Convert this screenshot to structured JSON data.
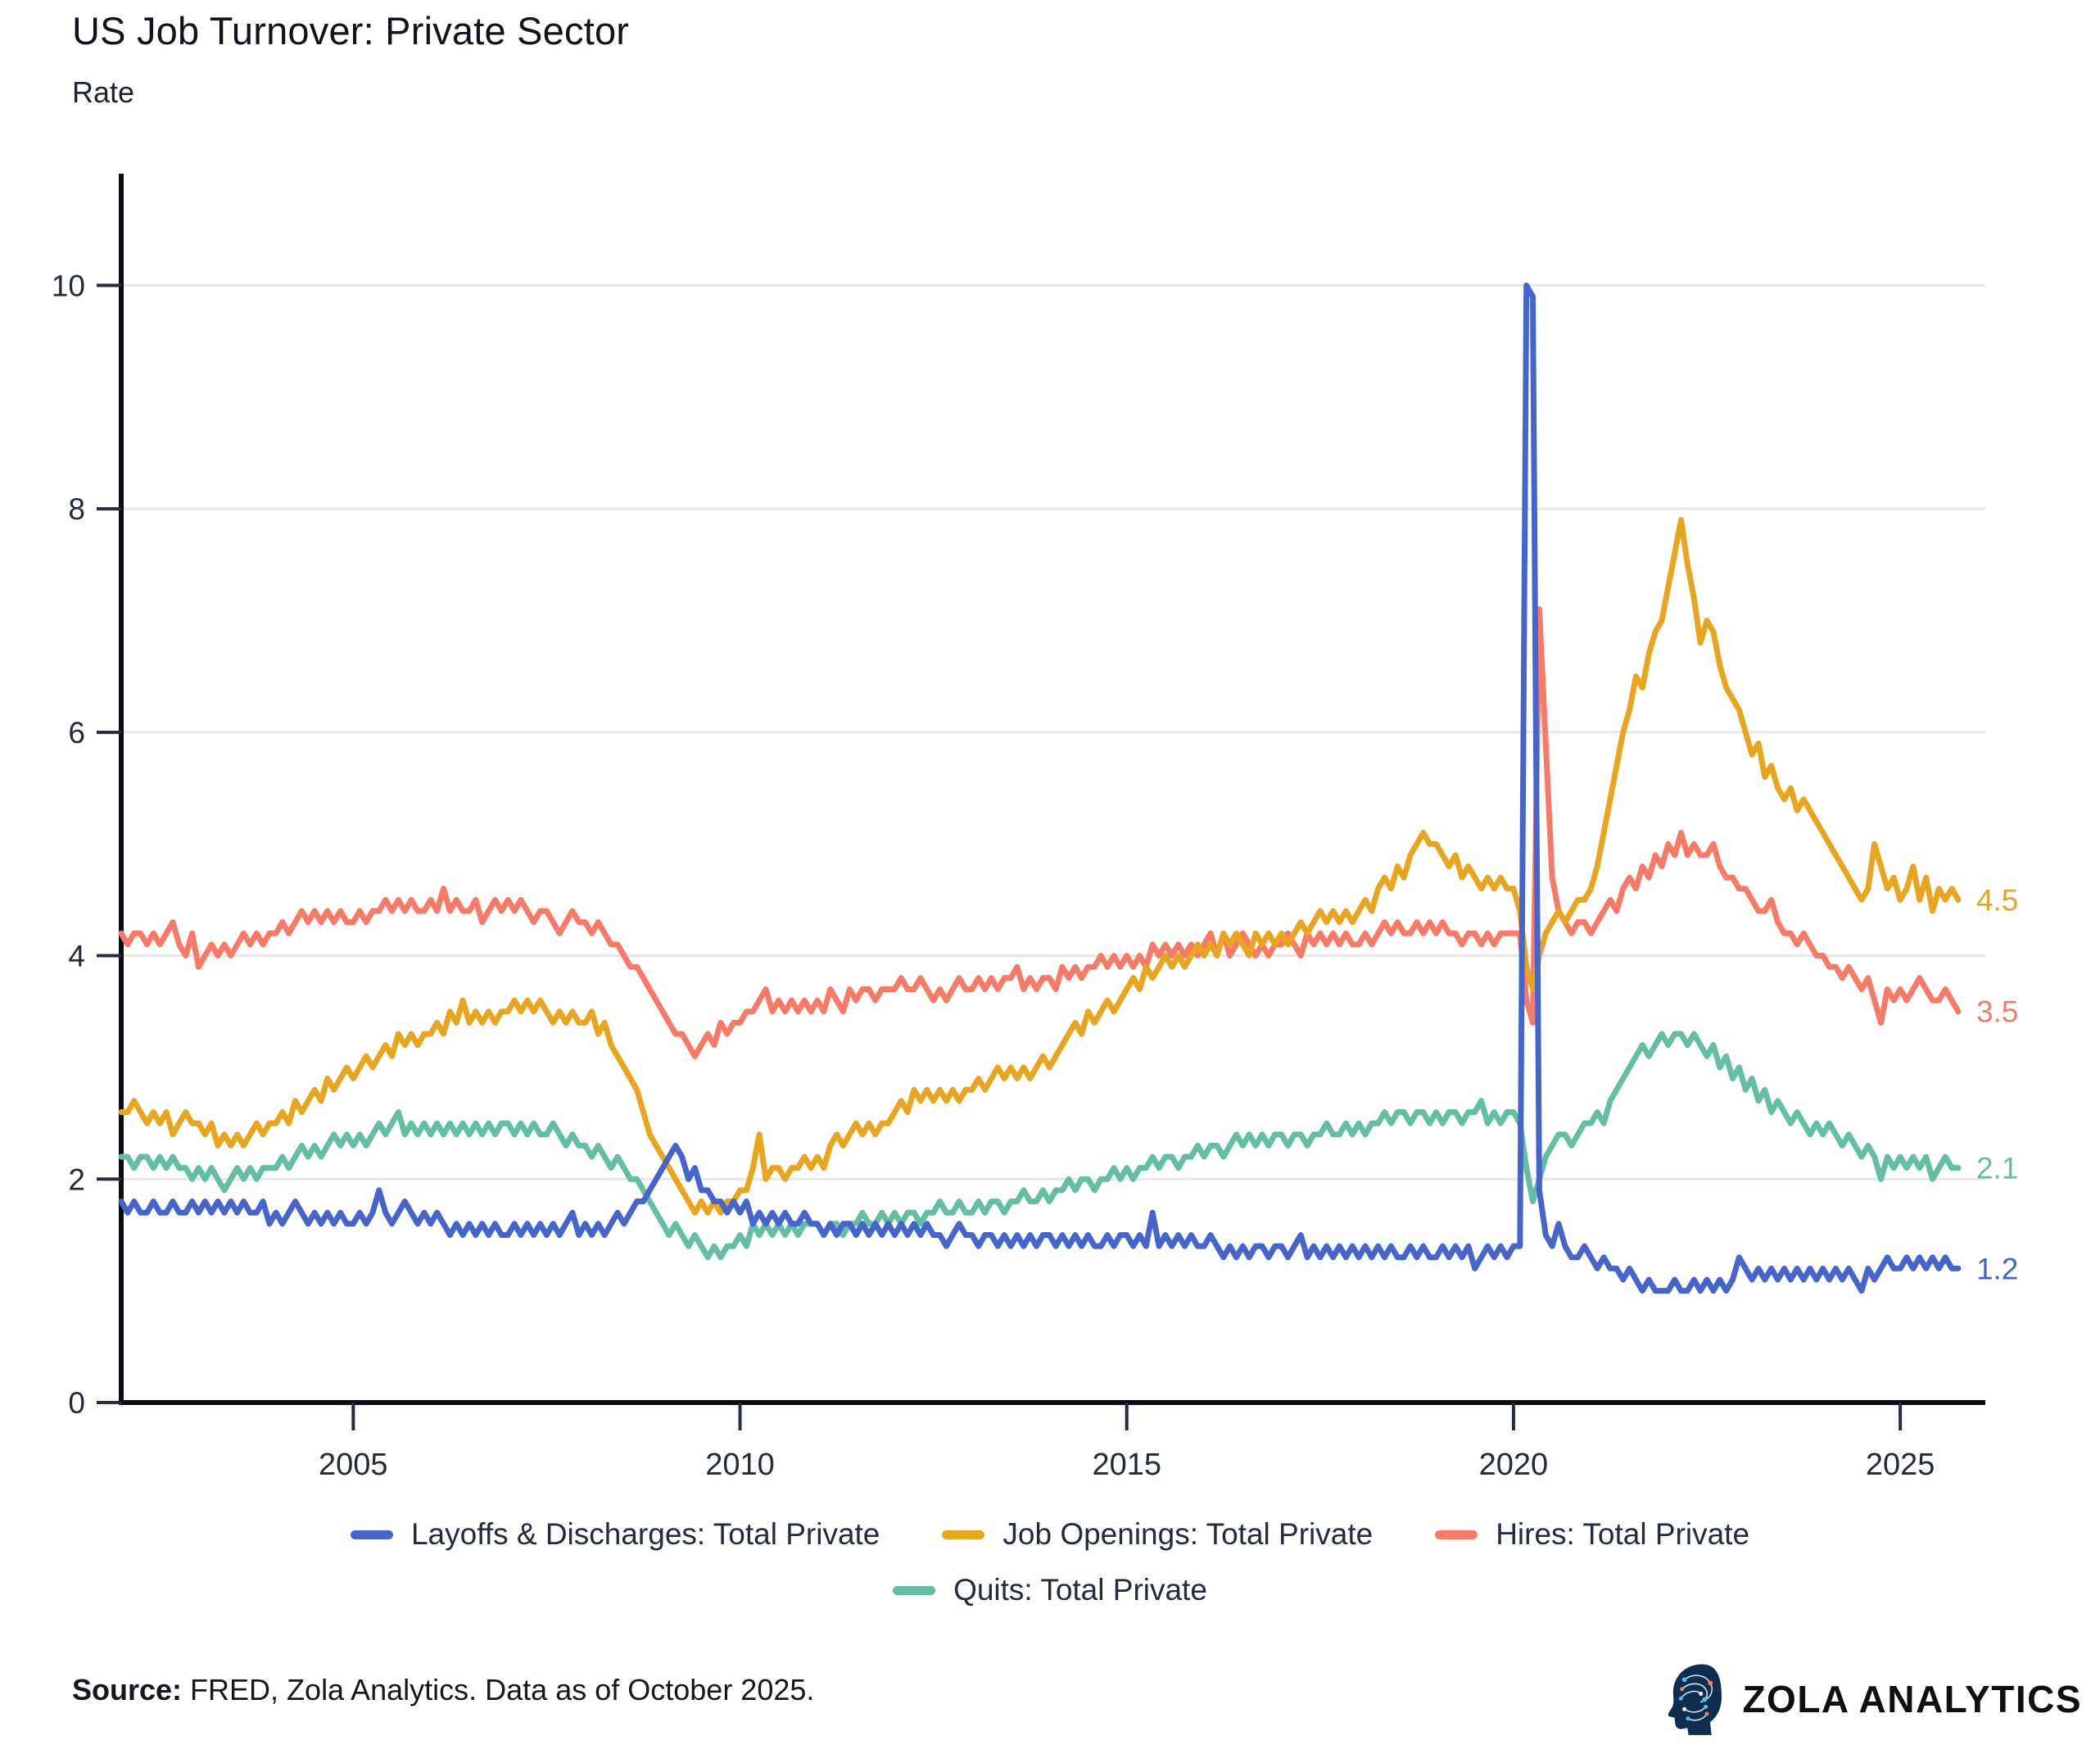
{
  "header": {
    "title": "US Job Turnover: Private Sector",
    "subtitle": "Rate"
  },
  "chart_data": {
    "type": "line",
    "title": "US Job Turnover: Private Sector",
    "ylabel": "Rate",
    "frequency": "monthly",
    "x_start": 2002.0,
    "x_end_label": "October 2025",
    "xlim": [
      2002.0,
      2026.1
    ],
    "ylim": [
      0,
      11.0
    ],
    "grid": "horizontal",
    "legend_position": "bottom",
    "x_ticks": [
      2005,
      2010,
      2015,
      2020,
      2025
    ],
    "y_ticks": [
      0,
      2,
      4,
      6,
      8,
      10
    ],
    "axis_color": "#0b0b14",
    "grid_color": "#e7e7ea",
    "tick_label_color": "#232a38",
    "series": [
      {
        "name": "Hires: Total Private",
        "color": "#f87a66",
        "end_label": "3.5",
        "values": [
          4.2,
          4.1,
          4.2,
          4.2,
          4.1,
          4.2,
          4.1,
          4.2,
          4.3,
          4.1,
          4.0,
          4.2,
          3.9,
          4.0,
          4.1,
          4.0,
          4.1,
          4.0,
          4.1,
          4.2,
          4.1,
          4.2,
          4.1,
          4.2,
          4.2,
          4.3,
          4.2,
          4.3,
          4.4,
          4.3,
          4.4,
          4.3,
          4.4,
          4.3,
          4.4,
          4.3,
          4.3,
          4.4,
          4.3,
          4.4,
          4.4,
          4.5,
          4.4,
          4.5,
          4.4,
          4.5,
          4.4,
          4.4,
          4.5,
          4.4,
          4.6,
          4.4,
          4.5,
          4.4,
          4.4,
          4.5,
          4.3,
          4.4,
          4.5,
          4.4,
          4.5,
          4.4,
          4.5,
          4.4,
          4.3,
          4.4,
          4.4,
          4.3,
          4.2,
          4.3,
          4.4,
          4.3,
          4.3,
          4.2,
          4.3,
          4.2,
          4.1,
          4.1,
          4.0,
          3.9,
          3.9,
          3.8,
          3.7,
          3.6,
          3.5,
          3.4,
          3.3,
          3.3,
          3.2,
          3.1,
          3.2,
          3.3,
          3.2,
          3.4,
          3.3,
          3.4,
          3.4,
          3.5,
          3.5,
          3.6,
          3.7,
          3.5,
          3.6,
          3.5,
          3.6,
          3.5,
          3.6,
          3.5,
          3.6,
          3.5,
          3.7,
          3.6,
          3.5,
          3.7,
          3.6,
          3.7,
          3.7,
          3.6,
          3.7,
          3.7,
          3.7,
          3.8,
          3.7,
          3.7,
          3.8,
          3.7,
          3.6,
          3.7,
          3.6,
          3.7,
          3.8,
          3.7,
          3.7,
          3.8,
          3.7,
          3.8,
          3.7,
          3.8,
          3.8,
          3.9,
          3.7,
          3.8,
          3.7,
          3.8,
          3.8,
          3.7,
          3.9,
          3.8,
          3.9,
          3.8,
          3.9,
          3.9,
          4.0,
          3.9,
          4.0,
          3.9,
          4.0,
          3.9,
          4.0,
          3.9,
          4.1,
          4.0,
          4.1,
          4.0,
          4.1,
          4.0,
          4.1,
          4.0,
          4.1,
          4.2,
          4.0,
          4.2,
          4.0,
          4.1,
          4.2,
          4.1,
          4.0,
          4.1,
          4.0,
          4.1,
          4.1,
          4.2,
          4.1,
          4.0,
          4.2,
          4.1,
          4.2,
          4.1,
          4.2,
          4.1,
          4.2,
          4.1,
          4.1,
          4.2,
          4.1,
          4.2,
          4.3,
          4.2,
          4.3,
          4.2,
          4.2,
          4.3,
          4.2,
          4.3,
          4.2,
          4.3,
          4.2,
          4.2,
          4.1,
          4.2,
          4.2,
          4.1,
          4.2,
          4.1,
          4.2,
          4.2,
          4.2,
          4.2,
          3.6,
          3.4,
          7.1,
          5.9,
          4.7,
          4.4,
          4.3,
          4.2,
          4.3,
          4.3,
          4.2,
          4.3,
          4.4,
          4.5,
          4.4,
          4.6,
          4.7,
          4.6,
          4.8,
          4.7,
          4.9,
          4.8,
          5.0,
          4.9,
          5.1,
          4.9,
          5.0,
          4.9,
          4.9,
          5.0,
          4.8,
          4.7,
          4.7,
          4.6,
          4.6,
          4.5,
          4.4,
          4.4,
          4.5,
          4.3,
          4.2,
          4.2,
          4.1,
          4.2,
          4.1,
          4.0,
          4.0,
          3.9,
          3.9,
          3.8,
          3.9,
          3.8,
          3.7,
          3.8,
          3.6,
          3.4,
          3.7,
          3.6,
          3.7,
          3.6,
          3.7,
          3.8,
          3.7,
          3.6,
          3.6,
          3.7,
          3.6,
          3.5
        ]
      },
      {
        "name": "Job Openings: Total Private",
        "color": "#e9a51e",
        "end_label": "4.5",
        "values": [
          2.6,
          2.6,
          2.7,
          2.6,
          2.5,
          2.6,
          2.5,
          2.6,
          2.4,
          2.5,
          2.6,
          2.5,
          2.5,
          2.4,
          2.5,
          2.3,
          2.4,
          2.3,
          2.4,
          2.3,
          2.4,
          2.5,
          2.4,
          2.5,
          2.5,
          2.6,
          2.5,
          2.7,
          2.6,
          2.7,
          2.8,
          2.7,
          2.9,
          2.8,
          2.9,
          3.0,
          2.9,
          3.0,
          3.1,
          3.0,
          3.1,
          3.2,
          3.1,
          3.3,
          3.2,
          3.3,
          3.2,
          3.3,
          3.3,
          3.4,
          3.3,
          3.5,
          3.4,
          3.6,
          3.4,
          3.5,
          3.4,
          3.5,
          3.4,
          3.5,
          3.5,
          3.6,
          3.5,
          3.6,
          3.5,
          3.6,
          3.5,
          3.4,
          3.5,
          3.4,
          3.5,
          3.4,
          3.4,
          3.5,
          3.3,
          3.4,
          3.2,
          3.1,
          3.0,
          2.9,
          2.8,
          2.6,
          2.4,
          2.3,
          2.2,
          2.1,
          2.0,
          1.9,
          1.8,
          1.7,
          1.8,
          1.7,
          1.8,
          1.7,
          1.8,
          1.8,
          1.9,
          1.9,
          2.1,
          2.4,
          2.0,
          2.1,
          2.1,
          2.0,
          2.1,
          2.1,
          2.2,
          2.1,
          2.2,
          2.1,
          2.3,
          2.4,
          2.3,
          2.4,
          2.5,
          2.4,
          2.5,
          2.4,
          2.5,
          2.5,
          2.6,
          2.7,
          2.6,
          2.8,
          2.7,
          2.8,
          2.7,
          2.8,
          2.7,
          2.8,
          2.7,
          2.8,
          2.8,
          2.9,
          2.8,
          2.9,
          3.0,
          2.9,
          3.0,
          2.9,
          3.0,
          2.9,
          3.0,
          3.1,
          3.0,
          3.1,
          3.2,
          3.3,
          3.4,
          3.3,
          3.5,
          3.4,
          3.5,
          3.6,
          3.5,
          3.6,
          3.7,
          3.8,
          3.7,
          3.9,
          3.8,
          3.9,
          4.0,
          3.9,
          4.0,
          3.9,
          4.0,
          4.1,
          4.0,
          4.1,
          4.0,
          4.2,
          4.1,
          4.2,
          4.1,
          4.0,
          4.2,
          4.1,
          4.2,
          4.1,
          4.2,
          4.1,
          4.2,
          4.3,
          4.2,
          4.3,
          4.4,
          4.3,
          4.4,
          4.3,
          4.4,
          4.3,
          4.4,
          4.5,
          4.4,
          4.6,
          4.7,
          4.6,
          4.8,
          4.7,
          4.9,
          5.0,
          5.1,
          5.0,
          5.0,
          4.9,
          4.8,
          4.9,
          4.7,
          4.8,
          4.7,
          4.6,
          4.7,
          4.6,
          4.7,
          4.6,
          4.6,
          4.4,
          3.9,
          3.7,
          4.0,
          4.2,
          4.3,
          4.4,
          4.3,
          4.4,
          4.5,
          4.5,
          4.6,
          4.8,
          5.1,
          5.4,
          5.7,
          6.0,
          6.2,
          6.5,
          6.4,
          6.7,
          6.9,
          7.0,
          7.3,
          7.6,
          7.9,
          7.5,
          7.2,
          6.8,
          7.0,
          6.9,
          6.6,
          6.4,
          6.3,
          6.2,
          6.0,
          5.8,
          5.9,
          5.6,
          5.7,
          5.5,
          5.4,
          5.5,
          5.3,
          5.4,
          5.3,
          5.2,
          5.1,
          5.0,
          4.9,
          4.8,
          4.7,
          4.6,
          4.5,
          4.6,
          5.0,
          4.8,
          4.6,
          4.7,
          4.5,
          4.6,
          4.8,
          4.5,
          4.7,
          4.4,
          4.6,
          4.5,
          4.6,
          4.5
        ]
      },
      {
        "name": "Quits: Total Private",
        "color": "#63bfa4",
        "end_label": "2.1",
        "values": [
          2.2,
          2.2,
          2.1,
          2.2,
          2.2,
          2.1,
          2.2,
          2.1,
          2.2,
          2.1,
          2.1,
          2.0,
          2.1,
          2.0,
          2.1,
          2.0,
          1.9,
          2.0,
          2.1,
          2.0,
          2.1,
          2.0,
          2.1,
          2.1,
          2.1,
          2.2,
          2.1,
          2.2,
          2.3,
          2.2,
          2.3,
          2.2,
          2.3,
          2.4,
          2.3,
          2.4,
          2.3,
          2.4,
          2.3,
          2.4,
          2.5,
          2.4,
          2.5,
          2.6,
          2.4,
          2.5,
          2.4,
          2.5,
          2.4,
          2.5,
          2.4,
          2.5,
          2.4,
          2.5,
          2.4,
          2.5,
          2.4,
          2.5,
          2.4,
          2.5,
          2.5,
          2.4,
          2.5,
          2.4,
          2.5,
          2.4,
          2.4,
          2.5,
          2.4,
          2.3,
          2.4,
          2.3,
          2.3,
          2.2,
          2.3,
          2.2,
          2.1,
          2.2,
          2.1,
          2.0,
          2.0,
          1.9,
          1.8,
          1.7,
          1.6,
          1.5,
          1.6,
          1.5,
          1.4,
          1.5,
          1.4,
          1.3,
          1.4,
          1.3,
          1.4,
          1.4,
          1.5,
          1.4,
          1.6,
          1.5,
          1.6,
          1.5,
          1.6,
          1.5,
          1.6,
          1.5,
          1.6,
          1.6,
          1.6,
          1.5,
          1.6,
          1.6,
          1.5,
          1.6,
          1.6,
          1.7,
          1.6,
          1.6,
          1.7,
          1.6,
          1.7,
          1.6,
          1.7,
          1.7,
          1.6,
          1.7,
          1.7,
          1.8,
          1.7,
          1.7,
          1.8,
          1.7,
          1.7,
          1.8,
          1.7,
          1.8,
          1.8,
          1.7,
          1.8,
          1.8,
          1.9,
          1.8,
          1.8,
          1.9,
          1.8,
          1.9,
          1.9,
          2.0,
          1.9,
          2.0,
          2.0,
          1.9,
          2.0,
          2.0,
          2.1,
          2.0,
          2.1,
          2.0,
          2.1,
          2.1,
          2.2,
          2.1,
          2.2,
          2.2,
          2.1,
          2.2,
          2.2,
          2.3,
          2.2,
          2.3,
          2.3,
          2.2,
          2.3,
          2.4,
          2.3,
          2.4,
          2.3,
          2.4,
          2.3,
          2.4,
          2.4,
          2.3,
          2.4,
          2.4,
          2.3,
          2.4,
          2.4,
          2.5,
          2.4,
          2.4,
          2.5,
          2.4,
          2.5,
          2.4,
          2.5,
          2.5,
          2.6,
          2.5,
          2.6,
          2.6,
          2.5,
          2.6,
          2.6,
          2.5,
          2.6,
          2.5,
          2.6,
          2.6,
          2.5,
          2.6,
          2.6,
          2.7,
          2.5,
          2.6,
          2.5,
          2.6,
          2.6,
          2.5,
          2.1,
          1.8,
          2.0,
          2.2,
          2.3,
          2.4,
          2.4,
          2.3,
          2.4,
          2.5,
          2.5,
          2.6,
          2.5,
          2.7,
          2.8,
          2.9,
          3.0,
          3.1,
          3.2,
          3.1,
          3.2,
          3.3,
          3.2,
          3.3,
          3.3,
          3.2,
          3.3,
          3.2,
          3.1,
          3.2,
          3.0,
          3.1,
          2.9,
          3.0,
          2.8,
          2.9,
          2.7,
          2.8,
          2.6,
          2.7,
          2.6,
          2.5,
          2.6,
          2.5,
          2.4,
          2.5,
          2.4,
          2.5,
          2.4,
          2.3,
          2.4,
          2.3,
          2.2,
          2.3,
          2.2,
          2.0,
          2.2,
          2.1,
          2.2,
          2.1,
          2.2,
          2.1,
          2.2,
          2.0,
          2.1,
          2.2,
          2.1,
          2.1
        ]
      },
      {
        "name": "Layoffs & Discharges: Total Private",
        "color": "#4565cd",
        "end_label": "1.2",
        "values": [
          1.8,
          1.7,
          1.8,
          1.7,
          1.7,
          1.8,
          1.7,
          1.7,
          1.8,
          1.7,
          1.7,
          1.8,
          1.7,
          1.8,
          1.7,
          1.8,
          1.7,
          1.8,
          1.7,
          1.8,
          1.7,
          1.7,
          1.8,
          1.6,
          1.7,
          1.6,
          1.7,
          1.8,
          1.7,
          1.6,
          1.7,
          1.6,
          1.7,
          1.6,
          1.7,
          1.6,
          1.6,
          1.7,
          1.6,
          1.7,
          1.9,
          1.7,
          1.6,
          1.7,
          1.8,
          1.7,
          1.6,
          1.7,
          1.6,
          1.7,
          1.6,
          1.5,
          1.6,
          1.5,
          1.6,
          1.5,
          1.6,
          1.5,
          1.6,
          1.5,
          1.5,
          1.6,
          1.5,
          1.6,
          1.5,
          1.6,
          1.5,
          1.6,
          1.5,
          1.6,
          1.7,
          1.5,
          1.6,
          1.5,
          1.6,
          1.5,
          1.6,
          1.7,
          1.6,
          1.7,
          1.8,
          1.8,
          1.9,
          2.0,
          2.1,
          2.2,
          2.3,
          2.2,
          2.0,
          2.1,
          1.9,
          1.9,
          1.8,
          1.8,
          1.7,
          1.8,
          1.7,
          1.8,
          1.6,
          1.7,
          1.6,
          1.7,
          1.6,
          1.7,
          1.6,
          1.6,
          1.7,
          1.6,
          1.6,
          1.5,
          1.6,
          1.5,
          1.6,
          1.6,
          1.5,
          1.6,
          1.5,
          1.6,
          1.5,
          1.6,
          1.5,
          1.6,
          1.5,
          1.6,
          1.5,
          1.6,
          1.5,
          1.5,
          1.4,
          1.5,
          1.6,
          1.5,
          1.5,
          1.4,
          1.5,
          1.5,
          1.4,
          1.5,
          1.4,
          1.5,
          1.4,
          1.5,
          1.4,
          1.5,
          1.5,
          1.4,
          1.5,
          1.4,
          1.5,
          1.4,
          1.5,
          1.4,
          1.4,
          1.5,
          1.4,
          1.5,
          1.5,
          1.4,
          1.5,
          1.4,
          1.7,
          1.4,
          1.5,
          1.4,
          1.5,
          1.4,
          1.5,
          1.4,
          1.4,
          1.5,
          1.4,
          1.3,
          1.4,
          1.3,
          1.4,
          1.3,
          1.4,
          1.4,
          1.3,
          1.4,
          1.4,
          1.3,
          1.4,
          1.5,
          1.3,
          1.4,
          1.3,
          1.4,
          1.3,
          1.4,
          1.3,
          1.4,
          1.3,
          1.4,
          1.3,
          1.4,
          1.3,
          1.4,
          1.3,
          1.3,
          1.4,
          1.3,
          1.4,
          1.3,
          1.3,
          1.4,
          1.3,
          1.4,
          1.3,
          1.4,
          1.2,
          1.3,
          1.4,
          1.3,
          1.4,
          1.3,
          1.4,
          1.4,
          10.0,
          9.9,
          1.9,
          1.5,
          1.4,
          1.6,
          1.4,
          1.3,
          1.3,
          1.4,
          1.3,
          1.2,
          1.3,
          1.2,
          1.2,
          1.1,
          1.2,
          1.1,
          1.0,
          1.1,
          1.0,
          1.0,
          1.0,
          1.1,
          1.0,
          1.0,
          1.1,
          1.0,
          1.1,
          1.0,
          1.1,
          1.0,
          1.1,
          1.3,
          1.2,
          1.1,
          1.2,
          1.1,
          1.2,
          1.1,
          1.2,
          1.1,
          1.2,
          1.1,
          1.2,
          1.1,
          1.2,
          1.1,
          1.2,
          1.1,
          1.2,
          1.1,
          1.0,
          1.2,
          1.1,
          1.2,
          1.3,
          1.2,
          1.2,
          1.3,
          1.2,
          1.3,
          1.2,
          1.3,
          1.2,
          1.3,
          1.2,
          1.2
        ]
      }
    ]
  },
  "legend": {
    "items": [
      {
        "label": "Layoffs & Discharges: Total Private",
        "color": "#4565cd"
      },
      {
        "label": "Job Openings: Total Private",
        "color": "#e9a51e"
      },
      {
        "label": "Hires: Total Private",
        "color": "#f87a66"
      },
      {
        "label": "Quits: Total Private",
        "color": "#63bfa4"
      }
    ]
  },
  "source": {
    "label": "Source:",
    "text": " FRED, Zola Analytics. Data as of October 2025."
  },
  "footer": {
    "logo_text": "ZOLA ANALYTICS"
  }
}
